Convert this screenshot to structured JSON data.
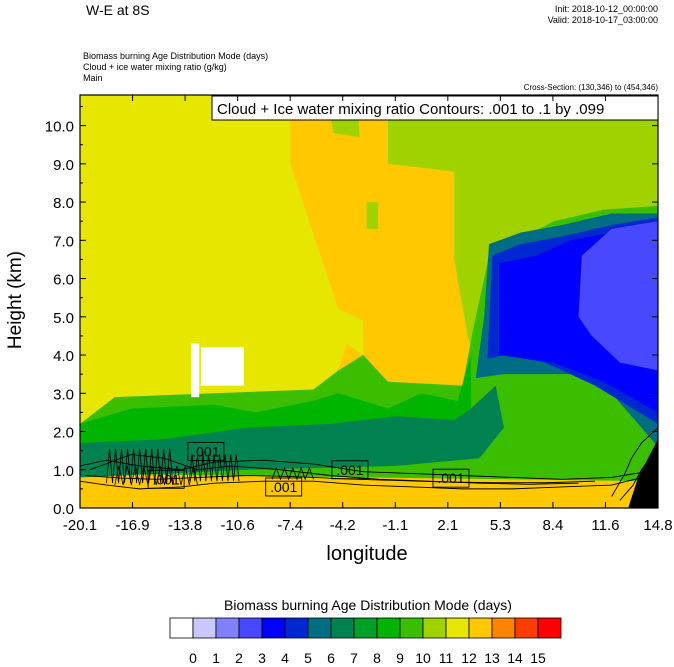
{
  "header": {
    "title": "W-E at 8S",
    "init": "Init: 2018-10-12_00:00:00",
    "valid": "Valid: 2018-10-17_03:00:00",
    "field1": "Biomass burning Age Distribution Mode    (days)",
    "field2": "Cloud + ice water mixing ratio    (g/kg)",
    "field3": "Main",
    "cross_section": "Cross-Section: (130,346) to (454,346)"
  },
  "chart_data": {
    "type": "heatmap",
    "title": "W-E at 8S",
    "xlabel": "longitude",
    "ylabel": "Height (km)",
    "x_ticks": [
      "-20.1",
      "-16.9",
      "-13.8",
      "-10.6",
      "-7.4",
      "-4.2",
      "-1.1",
      "2.1",
      "5.3",
      "8.4",
      "11.6",
      "14.8"
    ],
    "y_ticks": [
      "0.0",
      "1.0",
      "2.0",
      "3.0",
      "4.0",
      "5.0",
      "6.0",
      "7.0",
      "8.0",
      "9.0",
      "10.0"
    ],
    "xlim": [
      -20.1,
      14.8
    ],
    "ylim": [
      0.0,
      10.8
    ],
    "contour_title": "Cloud + Ice water mixing ratio Contours: .001 to .1 by .099",
    "contour_labels": [
      ".001",
      ".001",
      ".001",
      ".001",
      ".001"
    ],
    "colorbar": {
      "title": "Biomass burning Age Distribution Mode  (days)",
      "labels": [
        "0",
        "1",
        "2",
        "3",
        "4",
        "5",
        "6",
        "7",
        "8",
        "9",
        "10",
        "11",
        "12",
        "13",
        "14",
        "15"
      ],
      "colors": [
        "#ffffff",
        "#c8c8ff",
        "#8080ff",
        "#4848ff",
        "#0000ff",
        "#0028d0",
        "#006e82",
        "#008250",
        "#00a028",
        "#00b400",
        "#3cbe00",
        "#a0d200",
        "#e6e600",
        "#ffc800",
        "#ff8200",
        "#ff3c00",
        "#ff0000"
      ]
    }
  }
}
